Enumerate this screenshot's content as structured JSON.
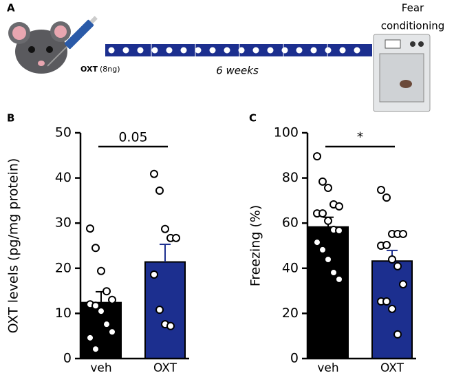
{
  "panel_a": {
    "panel_label": "A",
    "drug": "OXT",
    "dose": "(8ng)",
    "duration": "6 weeks",
    "test_lines": [
      "Fear",
      "conditioning"
    ]
  },
  "chart_data": [
    {
      "type": "bar",
      "panel_label": "B",
      "ylabel": "OXT levels (pg/mg protein)",
      "categories": [
        "veh",
        "OXT"
      ],
      "values": [
        12.4,
        21.4
      ],
      "errors": [
        2.4,
        3.9
      ],
      "colors": [
        "#000000",
        "#1c2f8f"
      ],
      "points": [
        [
          28.8,
          24.5,
          19.4,
          14.9,
          13,
          12,
          11.7,
          10.5,
          7.6,
          5.9,
          4.6,
          2.1
        ],
        [
          40.9,
          37.2,
          28.7,
          26.7,
          26.7,
          18.6,
          10.8,
          7.6,
          7.2
        ]
      ],
      "annotation": "0.05",
      "ylim": [
        0,
        50
      ],
      "yticks": [
        0,
        10,
        20,
        30,
        40,
        50
      ]
    },
    {
      "type": "bar",
      "panel_label": "C",
      "ylabel": "Freezing (%)",
      "categories": [
        "veh",
        "OXT"
      ],
      "values": [
        58.3,
        43.2
      ],
      "errors": [
        4.3,
        4.7
      ],
      "colors": [
        "#000000",
        "#1c2f8f"
      ],
      "points": [
        [
          89.6,
          78.4,
          75.6,
          68.3,
          67.4,
          64.3,
          64.3,
          61,
          57,
          56.7,
          51.5,
          48.2,
          43.9,
          38.1,
          35.1
        ],
        [
          74.7,
          71.3,
          55.2,
          55.2,
          55.2,
          50,
          50.3,
          43.9,
          40.9,
          32.9,
          25.3,
          25.3,
          22,
          10.7
        ]
      ],
      "annotation": "*",
      "ylim": [
        0,
        100
      ],
      "yticks": [
        0,
        20,
        40,
        60,
        80,
        100
      ]
    }
  ]
}
